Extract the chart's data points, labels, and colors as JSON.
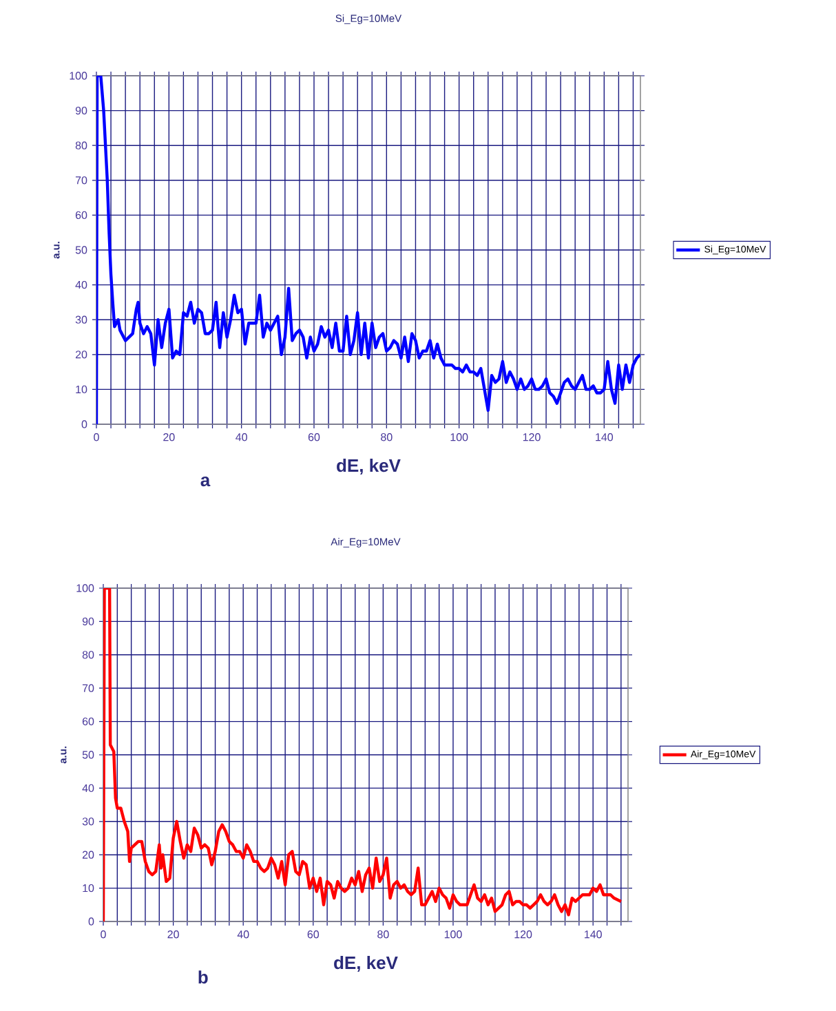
{
  "chart_data": [
    {
      "type": "line",
      "title": "Si_Eg=10MeV",
      "xlabel": "dE, keV",
      "ylabel": "a.u.",
      "annotations": [
        "a"
      ],
      "grid": true,
      "legend": "right",
      "line_style": "solid",
      "marker": "none",
      "xlim": [
        0,
        150
      ],
      "ylim": [
        0,
        100
      ],
      "yticks": [
        0,
        10,
        20,
        30,
        40,
        50,
        60,
        70,
        80,
        90,
        100
      ],
      "xticks": [
        0,
        {
          "value": 4,
          "label": null
        },
        {
          "value": 8,
          "label": null
        },
        {
          "value": 12,
          "label": null
        },
        {
          "value": 16,
          "label": null
        },
        20,
        {
          "value": 24,
          "label": null
        },
        {
          "value": 28,
          "label": null
        },
        {
          "value": 32,
          "label": null
        },
        {
          "value": 36,
          "label": null
        },
        40,
        {
          "value": 44,
          "label": null
        },
        {
          "value": 48,
          "label": null
        },
        {
          "value": 52,
          "label": null
        },
        {
          "value": 56,
          "label": null
        },
        60,
        {
          "value": 64,
          "label": null
        },
        {
          "value": 68,
          "label": null
        },
        {
          "value": 72,
          "label": null
        },
        {
          "value": 76,
          "label": null
        },
        80,
        {
          "value": 84,
          "label": null
        },
        {
          "value": 88,
          "label": null
        },
        {
          "value": 92,
          "label": null
        },
        {
          "value": 96,
          "label": null
        },
        100,
        {
          "value": 104,
          "label": null
        },
        {
          "value": 108,
          "label": null
        },
        {
          "value": 112,
          "label": null
        },
        {
          "value": 116,
          "label": null
        },
        120,
        {
          "value": 124,
          "label": null
        },
        {
          "value": 128,
          "label": null
        },
        {
          "value": 132,
          "label": null
        },
        {
          "value": 136,
          "label": null
        },
        140,
        {
          "value": 144,
          "label": null
        },
        {
          "value": 148,
          "label": null
        }
      ],
      "x": [
        0,
        0.2,
        1.2,
        2,
        3,
        3.5,
        4,
        4.5,
        5,
        6,
        6.5,
        8,
        10,
        11,
        11.5,
        12,
        13,
        14,
        15,
        16,
        17,
        18,
        19,
        20,
        21,
        22,
        23,
        24,
        25,
        26,
        27,
        28,
        29,
        30,
        31,
        32,
        33,
        34,
        35,
        36,
        37,
        38,
        39,
        40,
        41,
        42,
        43,
        44,
        45,
        46,
        47,
        48,
        49,
        50,
        51,
        52,
        53,
        54,
        55,
        56,
        57,
        58,
        59,
        60,
        61,
        62,
        63,
        64,
        65,
        66,
        67,
        68,
        69,
        70,
        71,
        72,
        73,
        74,
        75,
        76,
        77,
        78,
        79,
        80,
        81,
        82,
        83,
        84,
        85,
        86,
        87,
        88,
        89,
        90,
        91,
        92,
        93,
        94,
        95,
        96,
        97,
        98,
        99,
        100,
        101,
        102,
        103,
        104,
        105,
        106,
        107,
        108,
        109,
        110,
        111,
        112,
        113,
        114,
        115,
        116,
        117,
        118,
        119,
        120,
        121,
        122,
        123,
        124,
        125,
        126,
        127,
        128,
        129,
        130,
        131,
        132,
        133,
        134,
        135,
        136,
        137,
        138,
        139,
        140,
        141,
        142,
        143,
        144,
        145,
        146,
        147,
        148,
        149,
        150
      ],
      "series": [
        {
          "name": "Si_Eg=10MeV",
          "color": "#0000ff",
          "values": [
            0,
            100,
            100,
            90,
            70,
            55,
            43,
            35,
            28,
            30,
            27,
            24,
            26,
            33,
            35,
            29,
            26,
            28,
            26,
            17,
            30,
            22,
            29,
            33,
            19,
            21,
            20,
            32,
            31,
            35,
            29,
            33,
            32,
            26,
            26,
            27,
            35,
            22,
            32,
            25,
            30,
            37,
            32,
            33,
            23,
            29,
            29,
            29,
            37,
            25,
            29,
            27,
            29,
            31,
            20,
            25,
            39,
            24,
            26,
            27,
            25,
            19,
            25,
            21,
            23,
            28,
            25,
            27,
            22,
            29,
            21,
            21,
            31,
            20,
            24,
            32,
            20,
            29,
            19,
            29,
            22,
            25,
            26,
            21,
            22,
            24,
            23,
            19,
            25,
            18,
            26,
            24,
            19,
            21,
            21,
            24,
            19,
            23,
            19,
            17,
            17,
            17,
            16,
            16,
            15,
            17,
            15,
            15,
            14,
            16,
            10,
            4,
            14,
            12,
            13,
            18,
            12,
            15,
            13,
            10,
            13,
            10,
            11,
            13,
            10,
            10,
            11,
            13,
            9,
            8,
            6,
            9,
            12,
            13,
            11,
            10,
            12,
            14,
            10,
            10,
            11,
            9,
            9,
            10,
            18,
            10,
            6,
            17,
            10,
            17,
            12,
            17,
            19,
            20
          ]
        }
      ]
    },
    {
      "type": "line",
      "title": "Air_Eg=10MeV",
      "xlabel": "dE, keV",
      "ylabel": "a.u.",
      "annotations": [
        "b"
      ],
      "grid": true,
      "legend": "right",
      "line_style": "solid",
      "marker": "none",
      "xlim": [
        0,
        150
      ],
      "ylim": [
        0,
        100
      ],
      "yticks": [
        0,
        10,
        20,
        30,
        40,
        50,
        60,
        70,
        80,
        90,
        100
      ],
      "xticks": [
        0,
        {
          "value": 4,
          "label": null
        },
        {
          "value": 8,
          "label": null
        },
        {
          "value": 12,
          "label": null
        },
        {
          "value": 16,
          "label": null
        },
        20,
        {
          "value": 24,
          "label": null
        },
        {
          "value": 28,
          "label": null
        },
        {
          "value": 32,
          "label": null
        },
        {
          "value": 36,
          "label": null
        },
        40,
        {
          "value": 44,
          "label": null
        },
        {
          "value": 48,
          "label": null
        },
        {
          "value": 52,
          "label": null
        },
        {
          "value": 56,
          "label": null
        },
        60,
        {
          "value": 64,
          "label": null
        },
        {
          "value": 68,
          "label": null
        },
        {
          "value": 72,
          "label": null
        },
        {
          "value": 76,
          "label": null
        },
        80,
        {
          "value": 84,
          "label": null
        },
        {
          "value": 88,
          "label": null
        },
        {
          "value": 92,
          "label": null
        },
        {
          "value": 96,
          "label": null
        },
        100,
        {
          "value": 104,
          "label": null
        },
        {
          "value": 108,
          "label": null
        },
        {
          "value": 112,
          "label": null
        },
        {
          "value": 116,
          "label": null
        },
        120,
        {
          "value": 124,
          "label": null
        },
        {
          "value": 128,
          "label": null
        },
        {
          "value": 132,
          "label": null
        },
        {
          "value": 136,
          "label": null
        },
        140,
        {
          "value": 144,
          "label": null
        },
        {
          "value": 148,
          "label": null
        }
      ],
      "x": [
        0,
        0.3,
        1.8,
        2,
        3,
        3.5,
        4,
        5,
        6,
        7,
        7.5,
        8,
        9,
        10,
        11,
        12,
        13,
        14,
        15,
        16,
        16.5,
        17,
        18,
        19,
        20,
        21,
        22,
        23,
        24,
        25,
        26,
        27,
        28,
        29,
        30,
        31,
        32,
        33,
        34,
        35,
        36,
        37,
        38,
        39,
        40,
        41,
        42,
        43,
        44,
        45,
        46,
        47,
        48,
        49,
        50,
        51,
        52,
        53,
        54,
        55,
        56,
        57,
        58,
        59,
        60,
        61,
        62,
        63,
        64,
        65,
        66,
        67,
        68,
        69,
        70,
        71,
        72,
        73,
        74,
        75,
        76,
        77,
        78,
        79,
        80,
        81,
        82,
        83,
        84,
        85,
        86,
        87,
        88,
        89,
        90,
        91,
        92,
        93,
        94,
        95,
        96,
        97,
        98,
        99,
        100,
        101,
        102,
        103,
        104,
        105,
        106,
        107,
        108,
        109,
        110,
        111,
        112,
        113,
        114,
        115,
        116,
        117,
        118,
        119,
        120,
        121,
        122,
        123,
        124,
        125,
        126,
        127,
        128,
        129,
        130,
        131,
        132,
        133,
        134,
        135,
        136,
        137,
        138,
        139,
        140,
        141,
        142,
        143,
        144,
        145,
        146,
        148
      ],
      "series": [
        {
          "name": "Air_Eg=10MeV",
          "color": "#ff0000",
          "values": [
            0,
            100,
            100,
            53,
            51,
            37,
            34,
            34,
            30,
            27,
            18,
            22,
            23,
            24,
            24,
            18,
            15,
            14,
            15,
            23,
            16,
            20,
            12,
            13,
            25,
            30,
            24,
            19,
            23,
            21,
            28,
            26,
            22,
            23,
            22,
            17,
            21,
            27,
            29,
            27,
            24,
            23,
            21,
            21,
            19,
            23,
            21,
            18,
            18,
            16,
            15,
            16,
            19,
            17,
            13,
            18,
            11,
            20,
            21,
            15,
            14,
            18,
            17,
            10,
            13,
            9,
            13,
            5,
            12,
            11,
            7,
            12,
            10,
            9,
            10,
            13,
            11,
            15,
            9,
            14,
            16,
            10,
            19,
            12,
            14,
            19,
            7,
            11,
            12,
            10,
            11,
            9,
            8,
            9,
            16,
            5,
            5,
            7,
            9,
            6,
            10,
            8,
            7,
            4,
            8,
            6,
            5,
            5,
            5,
            8,
            11,
            7,
            6,
            8,
            5,
            7,
            3,
            4,
            5,
            8,
            9,
            5,
            6,
            6,
            5,
            5,
            4,
            5,
            6,
            8,
            6,
            5,
            6,
            8,
            5,
            3,
            5,
            2,
            7,
            6,
            7,
            8,
            8,
            8,
            10,
            9,
            11,
            8,
            8,
            8,
            7,
            6
          ]
        }
      ]
    }
  ]
}
